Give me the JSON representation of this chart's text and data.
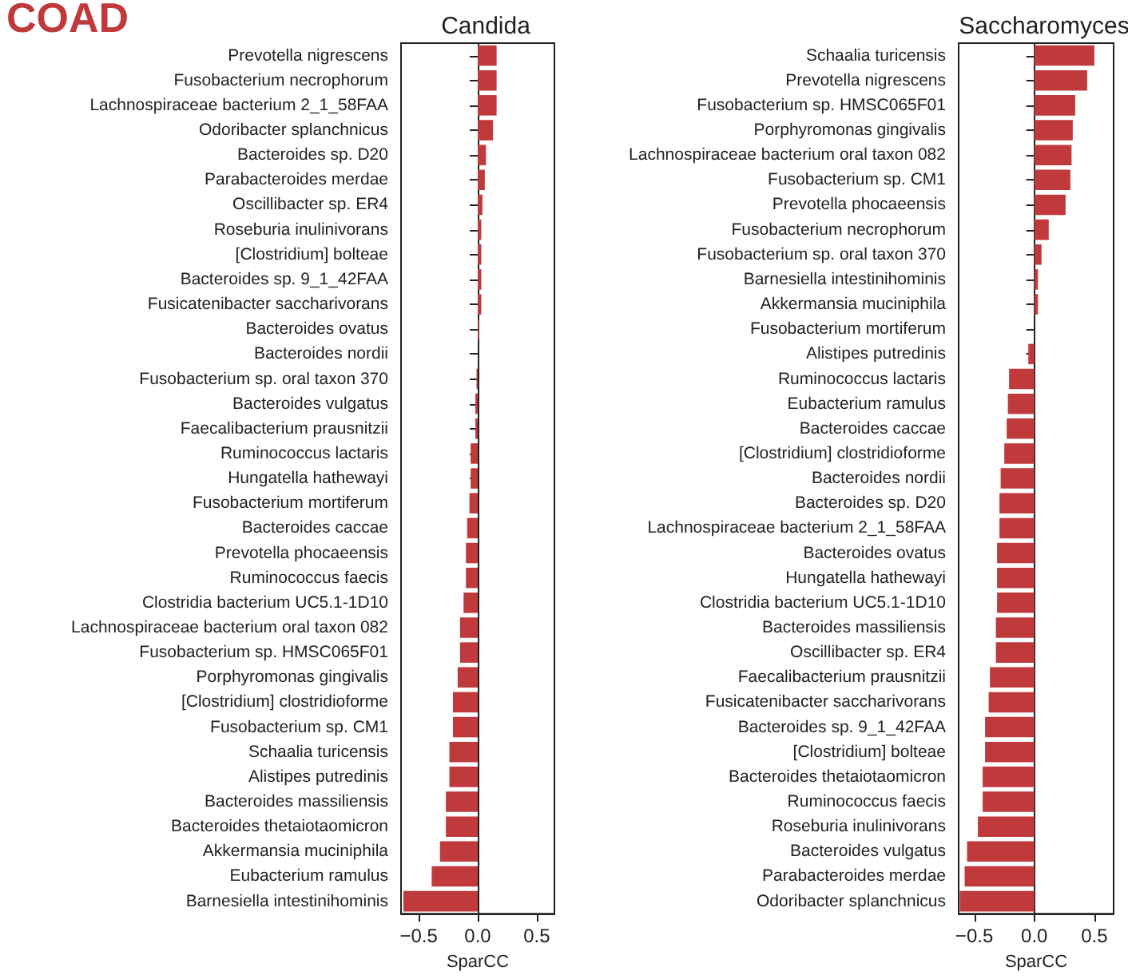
{
  "chart_data": [
    {
      "type": "bar",
      "orientation": "horizontal",
      "title": "Candida",
      "xlabel": "SparCC",
      "annotations": [
        "COAD"
      ],
      "categories": [
        "Prevotella nigrescens",
        "Fusobacterium necrophorum",
        "Lachnospiraceae bacterium 2_1_58FAA",
        "Odoribacter splanchnicus",
        "Bacteroides sp. D20",
        "Parabacteroides merdae",
        "Oscillibacter sp. ER4",
        "Roseburia inulinivorans",
        "[Clostridium] bolteae",
        "Bacteroides sp. 9_1_42FAA",
        "Fusicatenibacter saccharivorans",
        "Bacteroides ovatus",
        "Bacteroides nordii",
        "Fusobacterium sp. oral taxon 370",
        "Bacteroides vulgatus",
        "Faecalibacterium prausnitzii",
        "Ruminococcus lactaris",
        "Hungatella hathewayi",
        "Fusobacterium mortiferum",
        "Bacteroides caccae",
        "Prevotella phocaeensis",
        "Ruminococcus faecis",
        "Clostridia bacterium UC5.1-1D10",
        "Lachnospiraceae bacterium oral taxon 082",
        "Fusobacterium sp. HMSC065F01",
        "Porphyromonas gingivalis",
        "[Clostridium] clostridioforme",
        "Fusobacterium sp. CM1",
        "Schaalia turicensis",
        "Alistipes putredinis",
        "Bacteroides massiliensis",
        "Bacteroides thetaiotaomicron",
        "Akkermansia muciniphila",
        "Eubacterium ramulus",
        "Barnesiella intestinihominis"
      ],
      "values": [
        0.16,
        0.16,
        0.16,
        0.13,
        0.07,
        0.06,
        0.04,
        0.03,
        0.03,
        0.03,
        0.03,
        0.01,
        0.0,
        -0.01,
        -0.02,
        -0.02,
        -0.06,
        -0.06,
        -0.07,
        -0.09,
        -0.1,
        -0.1,
        -0.12,
        -0.15,
        -0.15,
        -0.17,
        -0.21,
        -0.21,
        -0.24,
        -0.24,
        -0.27,
        -0.27,
        -0.32,
        -0.39,
        -0.63
      ],
      "color": "#c0393b",
      "xlim": [
        -0.65,
        0.65
      ],
      "xticks": [
        {
          "value": -0.5,
          "label": "−0.5"
        },
        {
          "value": 0,
          "label": "0.0"
        },
        {
          "value": 0.5,
          "label": "0.5"
        }
      ]
    },
    {
      "type": "bar",
      "orientation": "horizontal",
      "title": "Saccharomyces",
      "xlabel": "SparCC",
      "categories": [
        "Schaalia turicensis",
        "Prevotella nigrescens",
        "Fusobacterium sp. HMSC065F01",
        "Porphyromonas gingivalis",
        "Lachnospiraceae bacterium oral taxon 082",
        "Fusobacterium sp. CM1",
        "Prevotella phocaeensis",
        "Fusobacterium necrophorum",
        "Fusobacterium sp. oral taxon 370",
        "Barnesiella intestinihominis",
        "Akkermansia muciniphila",
        "Fusobacterium mortiferum",
        "Alistipes putredinis",
        "Ruminococcus lactaris",
        "Eubacterium ramulus",
        "Bacteroides caccae",
        "[Clostridium] clostridioforme",
        "Bacteroides nordii",
        "Bacteroides sp. D20",
        "Lachnospiraceae bacterium 2_1_58FAA",
        "Bacteroides ovatus",
        "Hungatella hathewayi",
        "Clostridia bacterium UC5.1-1D10",
        "Bacteroides massiliensis",
        "Oscillibacter sp. ER4",
        "Faecalibacterium prausnitzii",
        "Fusicatenibacter saccharivorans",
        "Bacteroides sp. 9_1_42FAA",
        "[Clostridium] bolteae",
        "Bacteroides thetaiotaomicron",
        "Ruminococcus faecis",
        "Roseburia inulinivorans",
        "Bacteroides vulgatus",
        "Parabacteroides merdae",
        "Odoribacter splanchnicus"
      ],
      "values": [
        0.5,
        0.44,
        0.34,
        0.32,
        0.31,
        0.3,
        0.26,
        0.12,
        0.06,
        0.03,
        0.03,
        0.0,
        -0.05,
        -0.21,
        -0.22,
        -0.23,
        -0.25,
        -0.28,
        -0.29,
        -0.29,
        -0.31,
        -0.31,
        -0.31,
        -0.32,
        -0.32,
        -0.37,
        -0.38,
        -0.41,
        -0.41,
        -0.43,
        -0.43,
        -0.47,
        -0.56,
        -0.58,
        -0.62
      ],
      "color": "#c0393b",
      "xlim": [
        -0.63,
        0.66
      ],
      "xticks": [
        {
          "value": -0.5,
          "label": "−0.5"
        },
        {
          "value": 0,
          "label": "0.0"
        },
        {
          "value": 0.5,
          "label": "0.5"
        }
      ]
    }
  ]
}
